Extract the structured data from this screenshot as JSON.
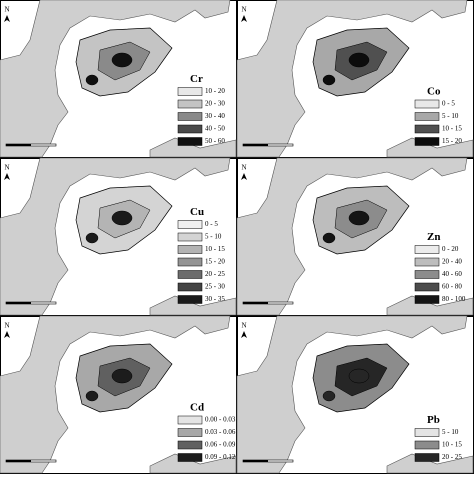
{
  "north_label": "N",
  "panels": [
    {
      "label": "Cr",
      "legend": [
        {
          "range": "10 - 20",
          "color": "#e8e8e8"
        },
        {
          "range": "20 - 30",
          "color": "#c4c4c4"
        },
        {
          "range": "30 - 40",
          "color": "#8a8a8a"
        },
        {
          "range": "40 - 50",
          "color": "#4a4a4a"
        },
        {
          "range": "50 - 60",
          "color": "#101010"
        }
      ]
    },
    {
      "label": "Co",
      "legend": [
        {
          "range": "0 - 5",
          "color": "#e8e8e8"
        },
        {
          "range": "5 - 10",
          "color": "#a8a8a8"
        },
        {
          "range": "10 - 15",
          "color": "#505050"
        },
        {
          "range": "15 - 20",
          "color": "#0c0c0c"
        }
      ]
    },
    {
      "label": "Cu",
      "legend": [
        {
          "range": "0 - 5",
          "color": "#f0f0f0"
        },
        {
          "range": "5 - 10",
          "color": "#d4d4d4"
        },
        {
          "range": "10 - 15",
          "color": "#b4b4b4"
        },
        {
          "range": "15 - 20",
          "color": "#949494"
        },
        {
          "range": "20 - 25",
          "color": "#6c6c6c"
        },
        {
          "range": "25 - 30",
          "color": "#444444"
        },
        {
          "range": "30 - 35",
          "color": "#1a1a1a"
        }
      ]
    },
    {
      "label": "Zn",
      "legend": [
        {
          "range": "0 - 20",
          "color": "#ececec"
        },
        {
          "range": "20 - 40",
          "color": "#bdbdbd"
        },
        {
          "range": "40 - 60",
          "color": "#8c8c8c"
        },
        {
          "range": "60 - 80",
          "color": "#4c4c4c"
        },
        {
          "range": "80 - 100",
          "color": "#141414"
        }
      ]
    },
    {
      "label": "Cd",
      "legend": [
        {
          "range": "0.00 - 0.03",
          "color": "#e4e4e4"
        },
        {
          "range": "0.03 - 0.06",
          "color": "#a8a8a8"
        },
        {
          "range": "0.06 - 0.09",
          "color": "#606060"
        },
        {
          "range": "0.09 - 0.12",
          "color": "#1c1c1c"
        }
      ]
    },
    {
      "label": "Pb",
      "legend": [
        {
          "range": "5 - 10",
          "color": "#e4e4e4"
        },
        {
          "range": "10 - 15",
          "color": "#8c8c8c"
        },
        {
          "range": "20 - 25",
          "color": "#262626"
        }
      ]
    }
  ]
}
